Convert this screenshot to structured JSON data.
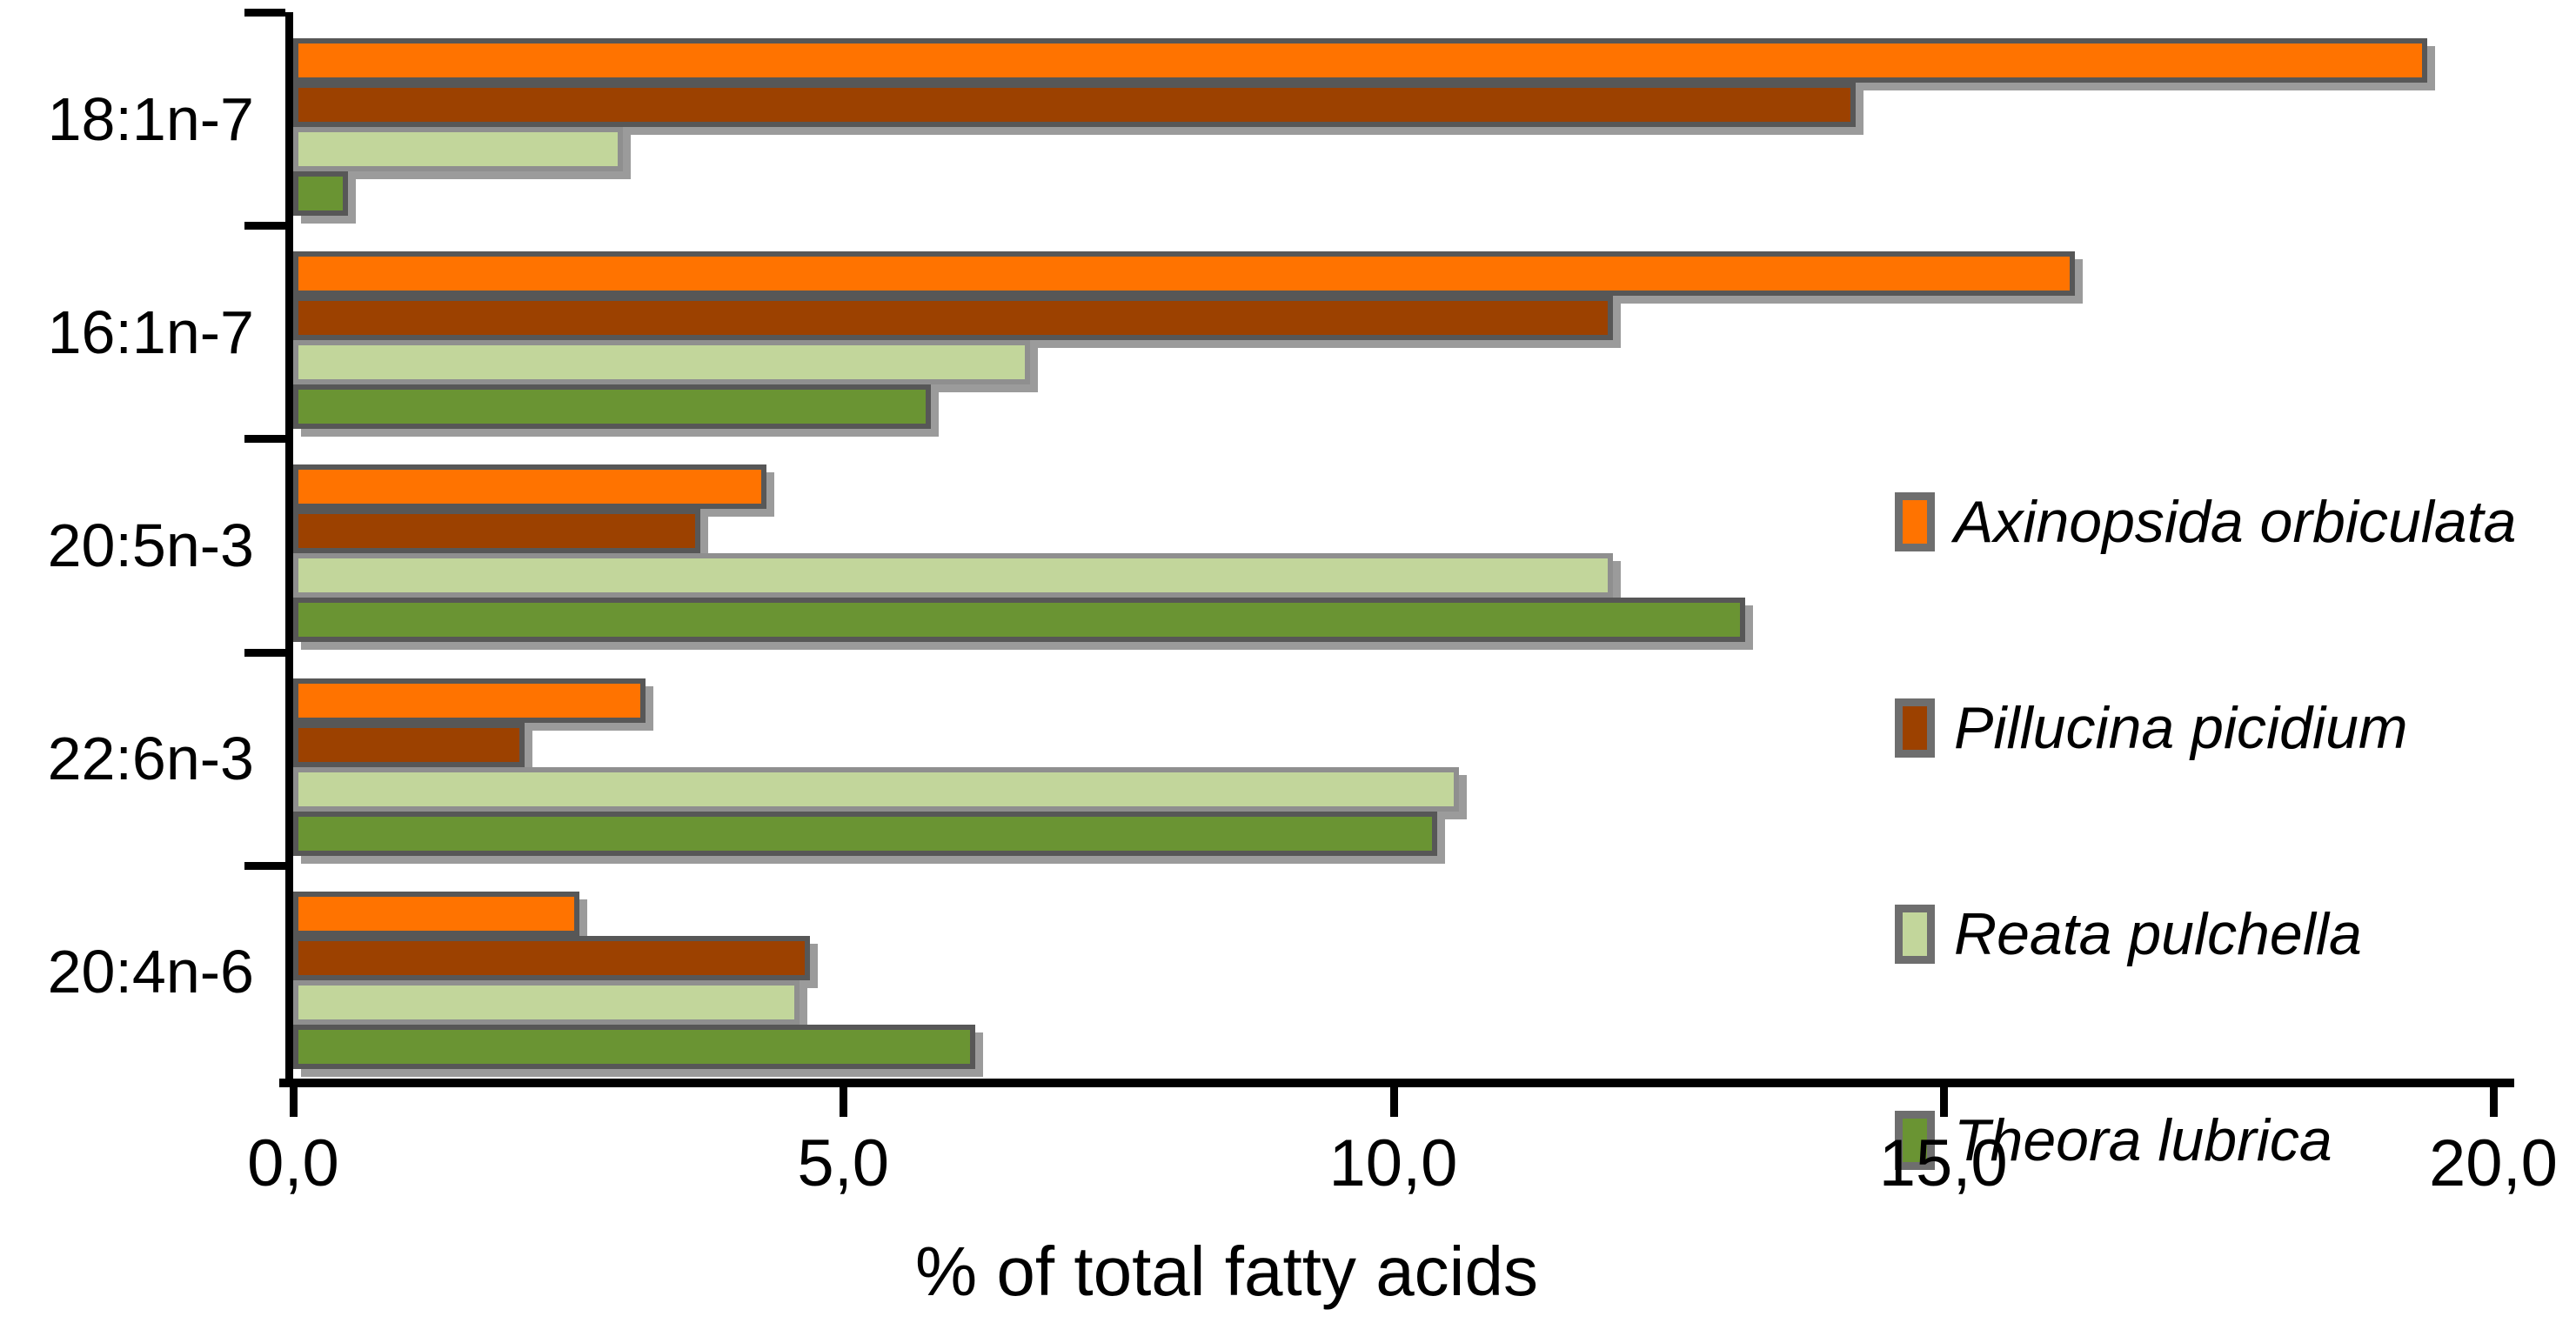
{
  "chart_data": {
    "type": "bar",
    "orientation": "horizontal",
    "title": "",
    "xlabel": "% of total fatty acids",
    "ylabel": "",
    "xlim": [
      0,
      20
    ],
    "x_ticks": [
      "0,0",
      "5,0",
      "10,0",
      "15,0",
      "20,0"
    ],
    "x_tick_values": [
      0,
      5,
      10,
      15,
      20
    ],
    "grid": false,
    "legend_position": "middle-right",
    "categories": [
      "18:1n-7",
      "16:1n-7",
      "20:5n-3",
      "22:6n-3",
      "20:4n-6"
    ],
    "series": [
      {
        "name": "Axinopsida orbiculata",
        "color": "#FF7300",
        "border_color": "#575757",
        "values": [
          19.4,
          16.2,
          4.3,
          3.2,
          2.6
        ]
      },
      {
        "name": "Pillucina picidium",
        "color": "#9C4100",
        "border_color": "#575757",
        "values": [
          14.2,
          12.0,
          3.7,
          2.1,
          4.7
        ]
      },
      {
        "name": "Reata pulchella",
        "color": "#C2D69B",
        "border_color": "#8F8F8F",
        "values": [
          3.0,
          6.7,
          12.0,
          10.6,
          4.6
        ]
      },
      {
        "name": "Theora lubrica",
        "color": "#6A9433",
        "border_color": "#575757",
        "values": [
          0.5,
          5.8,
          13.2,
          10.4,
          6.2
        ]
      }
    ],
    "axis_color": "#000000",
    "shadow_color": "#9B9B9B"
  }
}
